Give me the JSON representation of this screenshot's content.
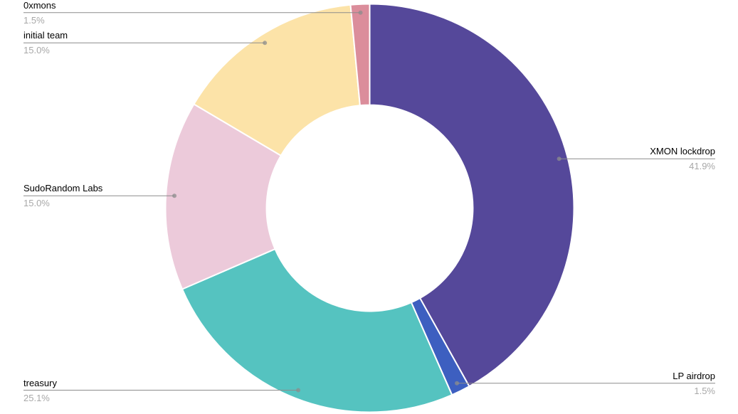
{
  "chart_data": {
    "type": "pie",
    "subtype": "donut",
    "title": "",
    "legend_position": "none",
    "labels_style": "outside-with-leader-lines",
    "start_angle_deg": 0,
    "direction": "clockwise",
    "inner_radius_ratio": 0.505,
    "slices": [
      {
        "label": "XMON lockdrop",
        "value": 41.9,
        "percent_label": "41.9%",
        "color": "#55489A"
      },
      {
        "label": "LP airdrop",
        "value": 1.5,
        "percent_label": "1.5%",
        "color": "#3D5FC0"
      },
      {
        "label": "treasury",
        "value": 25.1,
        "percent_label": "25.1%",
        "color": "#55C3C0"
      },
      {
        "label": "SudoRandom Labs",
        "value": 15.0,
        "percent_label": "15.0%",
        "color": "#ECCADA"
      },
      {
        "label": "initial team",
        "value": 15.0,
        "percent_label": "15.0%",
        "color": "#FCE3A8"
      },
      {
        "label": "0xmons",
        "value": 1.5,
        "percent_label": "1.5%",
        "color": "#DB8D9B"
      }
    ]
  },
  "styles": {
    "background_color": "#FFFFFF",
    "label_text_color": "#000000",
    "percent_text_color": "#A8A8A8",
    "leader_line_color": "#8C8C8C",
    "leader_dot_color": "#8C8C8C",
    "slice_border_color": "#FFFFFF"
  }
}
